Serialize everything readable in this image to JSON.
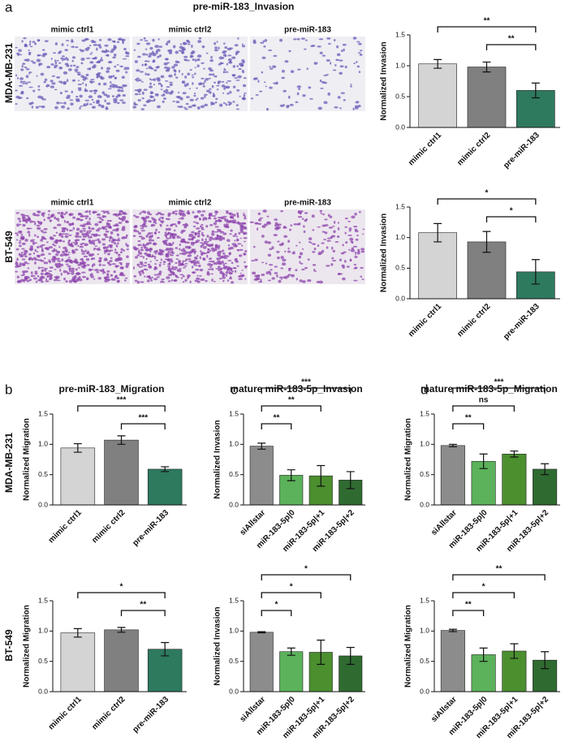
{
  "figure": {
    "panel_letters": [
      "a",
      "b",
      "c",
      "d"
    ],
    "panel_a_title": "pre-miR-183_Invasion",
    "row_labels": [
      "MDA-MB-231",
      "BT-549",
      "MDA-MB-231",
      "BT-549"
    ],
    "image_labels": [
      [
        "mimic ctrl1",
        "mimic ctrl2",
        "pre-miR-183"
      ],
      [
        "mimic ctrl1",
        "mimic ctrl2",
        "pre-miR-183"
      ]
    ]
  },
  "chart_data": [
    {
      "type": "bar",
      "ylabel": "Normalized Invasion",
      "categories": [
        "mimic ctrl1",
        "mimic ctrl2",
        "pre-miR-183"
      ],
      "values": [
        1.03,
        0.98,
        0.6
      ],
      "errors": [
        0.07,
        0.08,
        0.12
      ],
      "colors": [
        "#d4d4d4",
        "#808080",
        "#2e7a5f"
      ],
      "annotations": [
        "**",
        "**"
      ],
      "ylim": [
        0,
        1.5
      ],
      "yticks": [
        {
          "value": 0,
          "label": "0.0"
        },
        0.5,
        {
          "value": 1,
          "label": "1.0"
        },
        1.5
      ]
    },
    {
      "type": "bar",
      "ylabel": "Normalized Invasion",
      "categories": [
        "mimic ctrl1",
        "mimic ctrl2",
        "pre-miR-183"
      ],
      "values": [
        1.08,
        0.93,
        0.44
      ],
      "errors": [
        0.15,
        0.17,
        0.2
      ],
      "colors": [
        "#d4d4d4",
        "#808080",
        "#2e7a5f"
      ],
      "annotations": [
        "*",
        "*"
      ],
      "ylim": [
        0,
        1.5
      ],
      "yticks": [
        {
          "value": 0,
          "label": "0.0"
        },
        0.5,
        {
          "value": 1,
          "label": "1.0"
        },
        1.5
      ]
    },
    {
      "type": "bar",
      "title": "pre-miR-183_Migration",
      "ylabel": "Normalized Migration",
      "categories": [
        "mimic ctrl1",
        "mimic ctrl2",
        "pre-miR-183"
      ],
      "values": [
        0.94,
        1.07,
        0.59
      ],
      "errors": [
        0.07,
        0.07,
        0.04
      ],
      "colors": [
        "#d4d4d4",
        "#808080",
        "#2e7a5f"
      ],
      "annotations": [
        "***",
        "***"
      ],
      "ylim": [
        0,
        1.5
      ],
      "yticks": [
        {
          "value": 0,
          "label": "0.0"
        },
        0.5,
        {
          "value": 1,
          "label": "1.0"
        },
        1.5
      ]
    },
    {
      "type": "bar",
      "title": "mature miR-183-5p_Invasion",
      "ylabel": "Normalized Invasion",
      "categories": [
        "siAllstar",
        "miR-183-5p|0",
        "miR-183-5p|+1",
        "miR-183-5p|+2"
      ],
      "values": [
        0.97,
        0.49,
        0.48,
        0.41
      ],
      "errors": [
        0.05,
        0.09,
        0.17,
        0.14
      ],
      "colors": [
        "#8c8c8c",
        "#5bb25a",
        "#4b8f2f",
        "#2f6b30"
      ],
      "annotations": [
        "**",
        "**",
        "***"
      ],
      "ylim": [
        0,
        1.5
      ],
      "yticks": [
        {
          "value": 0,
          "label": "0.0"
        },
        0.5,
        {
          "value": 1,
          "label": "1.0"
        },
        1.5
      ]
    },
    {
      "type": "bar",
      "title": "mature miR-183-5p_Migration",
      "ylabel": "Normalized Migration",
      "categories": [
        "siAllstar",
        "miR-183-5p|0",
        "miR-183-5p|+1",
        "miR-183-5p|+2"
      ],
      "values": [
        0.98,
        0.72,
        0.84,
        0.59
      ],
      "errors": [
        0.02,
        0.12,
        0.05,
        0.09
      ],
      "colors": [
        "#8c8c8c",
        "#5bb25a",
        "#4b8f2f",
        "#2f6b30"
      ],
      "annotations": [
        "**",
        "ns",
        "***"
      ],
      "ylim": [
        0,
        1.5
      ],
      "yticks": [
        {
          "value": 0,
          "label": "0.0"
        },
        0.5,
        {
          "value": 1,
          "label": "1.0"
        },
        1.5
      ]
    },
    {
      "type": "bar",
      "ylabel": "Normalized Migration",
      "categories": [
        "mimic ctrl1",
        "mimic ctrl2",
        "pre-miR-183"
      ],
      "values": [
        0.97,
        1.02,
        0.7
      ],
      "errors": [
        0.07,
        0.04,
        0.11
      ],
      "colors": [
        "#d4d4d4",
        "#808080",
        "#2e7a5f"
      ],
      "annotations": [
        "*",
        "**"
      ],
      "ylim": [
        0,
        1.5
      ],
      "yticks": [
        {
          "value": 0,
          "label": "0.0"
        },
        0.5,
        {
          "value": 1,
          "label": "1.0"
        },
        1.5
      ]
    },
    {
      "type": "bar",
      "ylabel": "Normalized Invasion",
      "categories": [
        "siAllstar",
        "miR-183-5p|0",
        "miR-183-5p|+1",
        "miR-183-5p|+2"
      ],
      "values": [
        0.98,
        0.66,
        0.65,
        0.59
      ],
      "errors": [
        0.01,
        0.06,
        0.2,
        0.14
      ],
      "colors": [
        "#8c8c8c",
        "#5bb25a",
        "#4b8f2f",
        "#2f6b30"
      ],
      "annotations": [
        "*",
        "*",
        "*"
      ],
      "ylim": [
        0,
        1.5
      ],
      "yticks": [
        {
          "value": 0,
          "label": "0.0"
        },
        0.5,
        {
          "value": 1,
          "label": "1.0"
        },
        1.5
      ]
    },
    {
      "type": "bar",
      "ylabel": "Normalized Migration",
      "categories": [
        "siAllstar",
        "miR-183-5p|0",
        "miR-183-5p|+1",
        "miR-183-5p|+2"
      ],
      "values": [
        1.01,
        0.61,
        0.67,
        0.52
      ],
      "errors": [
        0.02,
        0.11,
        0.12,
        0.14
      ],
      "colors": [
        "#8c8c8c",
        "#5bb25a",
        "#4b8f2f",
        "#2f6b30"
      ],
      "annotations": [
        "**",
        "*",
        "**"
      ],
      "ylim": [
        0,
        1.5
      ],
      "yticks": [
        {
          "value": 0,
          "label": "0.0"
        },
        0.5,
        {
          "value": 1,
          "label": "1.0"
        },
        1.5
      ]
    }
  ]
}
